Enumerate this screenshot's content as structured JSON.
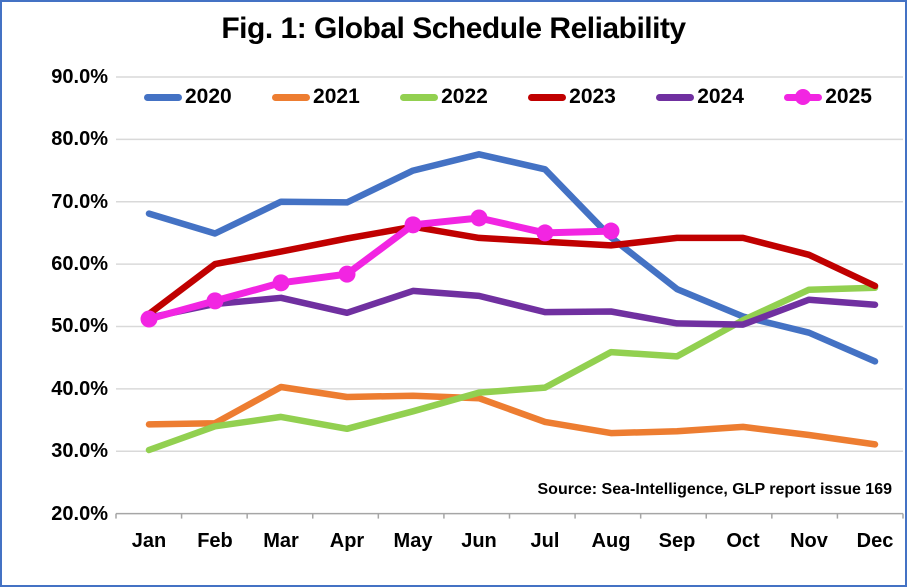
{
  "title": "Fig. 1: Global Schedule Reliability",
  "source_note": "Source: Sea-Intelligence, GLP report issue 169",
  "colors": {
    "frame_border": "#4472C4",
    "gridline": "#D9D9D9",
    "axis_line": "#A6A6A6",
    "text": "#000000",
    "background": "#FFFFFF"
  },
  "chart_data": {
    "type": "line",
    "title": "Fig. 1: Global Schedule Reliability",
    "categories": [
      "Jan",
      "Feb",
      "Mar",
      "Apr",
      "May",
      "Jun",
      "Jul",
      "Aug",
      "Sep",
      "Oct",
      "Nov",
      "Dec"
    ],
    "y_axis": {
      "ticks": [
        "90.0%",
        "80.0%",
        "70.0%",
        "60.0%",
        "50.0%",
        "40.0%",
        "30.0%",
        "20.0%"
      ],
      "min": 20,
      "max": 90,
      "step": 10,
      "unit": "%"
    },
    "grid": true,
    "legend_position": "top",
    "annotation": "Source: Sea-Intelligence, GLP report issue 169",
    "series": [
      {
        "name": "2020",
        "color": "#4472C4",
        "marker": false,
        "values": [
          68.1,
          64.9,
          70.0,
          69.9,
          75.0,
          77.6,
          75.2,
          64.3,
          56.0,
          51.6,
          49.0,
          44.4
        ]
      },
      {
        "name": "2021",
        "color": "#ED7D31",
        "marker": false,
        "values": [
          34.3,
          34.5,
          40.3,
          38.7,
          38.9,
          38.5,
          34.7,
          32.9,
          33.2,
          33.9,
          32.6,
          31.1
        ]
      },
      {
        "name": "2022",
        "color": "#92D050",
        "marker": false,
        "values": [
          30.2,
          34.0,
          35.5,
          33.6,
          36.4,
          39.4,
          40.2,
          45.9,
          45.2,
          51.0,
          55.9,
          56.2
        ]
      },
      {
        "name": "2023",
        "color": "#C00000",
        "marker": false,
        "values": [
          52.0,
          60.0,
          62.0,
          64.1,
          66.0,
          64.2,
          63.6,
          63.0,
          64.2,
          64.2,
          61.5,
          56.5
        ]
      },
      {
        "name": "2024",
        "color": "#7030A0",
        "marker": false,
        "values": [
          51.4,
          53.6,
          54.6,
          52.2,
          55.7,
          54.9,
          52.3,
          52.4,
          50.5,
          50.3,
          54.3,
          53.5
        ]
      },
      {
        "name": "2025",
        "color": "#F225E2",
        "marker": true,
        "values": [
          51.2,
          54.1,
          57.0,
          58.4,
          66.3,
          67.4,
          65.0,
          65.3,
          null,
          null,
          null,
          null
        ]
      }
    ]
  }
}
